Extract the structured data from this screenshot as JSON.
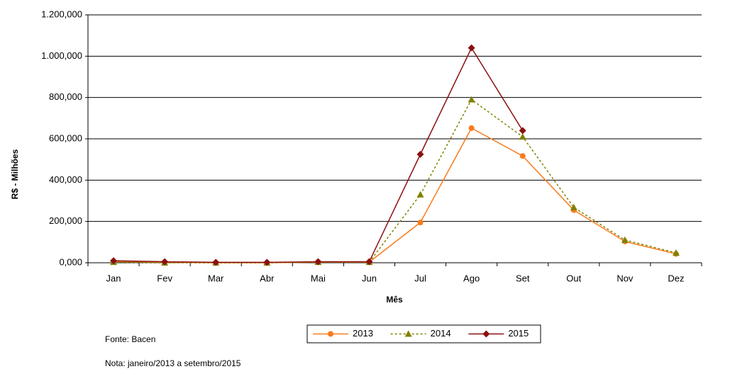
{
  "chart_data": {
    "type": "line",
    "categories": [
      "Jan",
      "Fev",
      "Mar",
      "Abr",
      "Mai",
      "Jun",
      "Jul",
      "Ago",
      "Set",
      "Out",
      "Nov",
      "Dez"
    ],
    "series": [
      {
        "name": "2013",
        "color": "#f97b1c",
        "marker": "circle",
        "dash": "solid",
        "values": [
          5,
          2,
          0,
          0,
          3,
          3,
          195,
          652,
          517,
          255,
          103,
          43
        ]
      },
      {
        "name": "2014",
        "color": "#808000",
        "marker": "triangle",
        "dash": "dotted",
        "values": [
          3,
          0,
          0,
          0,
          3,
          3,
          330,
          790,
          610,
          268,
          110,
          48
        ]
      },
      {
        "name": "2015",
        "color": "#8b1010",
        "marker": "diamond",
        "dash": "solid",
        "values": [
          10,
          5,
          2,
          2,
          5,
          5,
          525,
          1040,
          640,
          null,
          null,
          null
        ]
      }
    ],
    "ylim": [
      0,
      1200
    ],
    "yticks": [
      {
        "value": 0,
        "label": "0,000"
      },
      {
        "value": 200,
        "label": "200,000"
      },
      {
        "value": 400,
        "label": "400,000"
      },
      {
        "value": 600,
        "label": "600,000"
      },
      {
        "value": 800,
        "label": "800,000"
      },
      {
        "value": 1000,
        "label": "1.000,000"
      },
      {
        "value": 1200,
        "label": "1.200,000"
      }
    ],
    "grid": true,
    "y_label": "R$ - Milhões",
    "x_label": "Mês",
    "legend": "bottom",
    "notes": [
      "Fonte: Bacen",
      "Nota: janeiro/2013 a setembro/2015"
    ]
  }
}
